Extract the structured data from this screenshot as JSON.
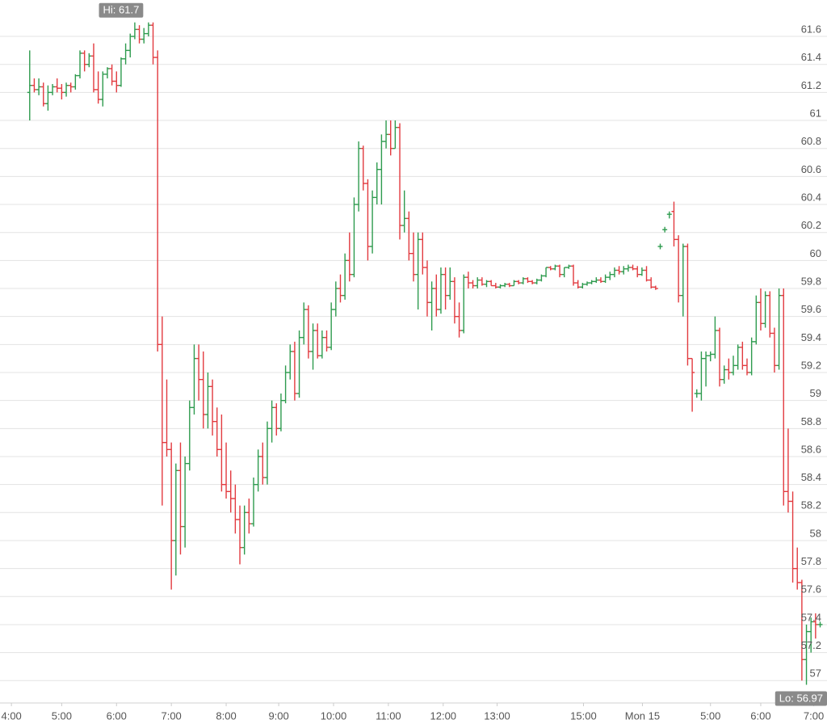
{
  "chart_data": {
    "type": "ohlc",
    "up_color": "#2e9b4e",
    "down_color": "#e23a3f",
    "grid": true,
    "xlim": [
      -6.5,
      174.5
    ],
    "ylim": [
      56.84,
      61.86
    ],
    "xticks": [
      {
        "value": -4,
        "label": "4:00"
      },
      {
        "value": 7,
        "label": "5:00"
      },
      {
        "value": 19,
        "label": "6:00"
      },
      {
        "value": 31,
        "label": "7:00"
      },
      {
        "value": 43,
        "label": "8:00"
      },
      {
        "value": 54.5,
        "label": "9:00"
      },
      {
        "value": 66.5,
        "label": "10:00"
      },
      {
        "value": 78.5,
        "label": "11:00"
      },
      {
        "value": 90.5,
        "label": "12:00"
      },
      {
        "value": 102.3,
        "label": "13:00"
      },
      {
        "value": 121.2,
        "label": "15:00"
      },
      {
        "value": 134.1,
        "label": "Mon 15"
      },
      {
        "value": 149,
        "label": "5:00"
      },
      {
        "value": 160,
        "label": "6:00"
      },
      {
        "value": 171.6,
        "label": "7:00"
      }
    ],
    "yticks": [
      57,
      57.2,
      57.4,
      57.6,
      57.8,
      58,
      58.2,
      58.4,
      58.6,
      58.8,
      59,
      59.2,
      59.4,
      59.6,
      59.8,
      60,
      60.2,
      60.4,
      60.6,
      60.8,
      61,
      61.2,
      61.4,
      61.6
    ],
    "annotations": [
      {
        "label": "Hi: 61.7",
        "value": 61.7,
        "x": 20
      },
      {
        "label": "Lo: 56.97",
        "value": 56.97,
        "x": 170
      }
    ],
    "ohlc": [
      [
        61.2,
        61.5,
        61.0,
        61.25
      ],
      [
        61.25,
        61.3,
        61.2,
        61.22
      ],
      [
        61.22,
        61.3,
        61.18,
        61.24
      ],
      [
        61.24,
        61.27,
        61.1,
        61.12
      ],
      [
        61.12,
        61.25,
        61.07,
        61.2
      ],
      [
        61.2,
        61.26,
        61.18,
        61.24
      ],
      [
        61.24,
        61.3,
        61.2,
        61.23
      ],
      [
        61.23,
        61.26,
        61.15,
        61.2
      ],
      [
        61.2,
        61.27,
        61.17,
        61.25
      ],
      [
        61.25,
        61.27,
        61.2,
        61.24
      ],
      [
        61.24,
        61.33,
        61.22,
        61.32
      ],
      [
        61.32,
        61.5,
        61.3,
        61.48
      ],
      [
        61.48,
        61.5,
        61.35,
        61.4
      ],
      [
        61.4,
        61.48,
        61.38,
        61.46
      ],
      [
        61.46,
        61.55,
        61.2,
        61.22
      ],
      [
        61.22,
        61.35,
        61.12,
        61.15
      ],
      [
        61.15,
        61.35,
        61.1,
        61.33
      ],
      [
        61.33,
        61.38,
        61.3,
        61.37
      ],
      [
        61.37,
        61.4,
        61.25,
        61.28
      ],
      [
        61.28,
        61.35,
        61.2,
        61.25
      ],
      [
        61.25,
        61.45,
        61.24,
        61.44
      ],
      [
        61.44,
        61.55,
        61.4,
        61.5
      ],
      [
        61.5,
        61.62,
        61.45,
        61.6
      ],
      [
        61.6,
        61.7,
        61.58,
        61.65
      ],
      [
        61.65,
        61.68,
        61.55,
        61.58
      ],
      [
        61.58,
        61.66,
        61.55,
        61.62
      ],
      [
        61.62,
        61.7,
        61.6,
        61.68
      ],
      [
        61.68,
        61.7,
        61.4,
        61.45
      ],
      [
        61.45,
        61.5,
        59.35,
        59.4
      ],
      [
        59.4,
        59.6,
        58.25,
        58.7
      ],
      [
        58.7,
        59.15,
        58.6,
        58.65
      ],
      [
        58.65,
        58.7,
        57.65,
        58.0
      ],
      [
        58.0,
        58.55,
        57.75,
        58.5
      ],
      [
        58.5,
        58.7,
        57.9,
        58.1
      ],
      [
        58.1,
        58.6,
        57.95,
        58.55
      ],
      [
        58.55,
        59.0,
        58.5,
        58.95
      ],
      [
        58.95,
        59.4,
        58.9,
        59.3
      ],
      [
        59.3,
        59.4,
        59.0,
        59.15
      ],
      [
        59.15,
        59.35,
        58.8,
        58.9
      ],
      [
        58.9,
        59.2,
        58.8,
        59.1
      ],
      [
        59.1,
        59.15,
        58.75,
        58.85
      ],
      [
        58.85,
        58.95,
        58.6,
        58.65
      ],
      [
        58.65,
        58.9,
        58.35,
        58.4
      ],
      [
        58.4,
        58.7,
        58.3,
        58.35
      ],
      [
        58.35,
        58.5,
        58.2,
        58.3
      ],
      [
        58.3,
        58.4,
        58.05,
        58.15
      ],
      [
        58.15,
        58.25,
        57.83,
        57.95
      ],
      [
        57.95,
        58.25,
        57.9,
        58.2
      ],
      [
        58.2,
        58.3,
        58.05,
        58.12
      ],
      [
        58.12,
        58.45,
        58.1,
        58.4
      ],
      [
        58.4,
        58.65,
        58.35,
        58.6
      ],
      [
        58.6,
        58.7,
        58.4,
        58.45
      ],
      [
        58.45,
        58.85,
        58.4,
        58.8
      ],
      [
        58.8,
        59.0,
        58.7,
        58.95
      ],
      [
        58.95,
        58.98,
        58.75,
        58.8
      ],
      [
        58.8,
        59.05,
        58.78,
        59.0
      ],
      [
        59.0,
        59.25,
        58.98,
        59.2
      ],
      [
        59.2,
        59.4,
        59.15,
        59.35
      ],
      [
        59.35,
        59.42,
        59.0,
        59.05
      ],
      [
        59.05,
        59.5,
        59.02,
        59.45
      ],
      [
        59.45,
        59.7,
        59.4,
        59.65
      ],
      [
        59.65,
        59.68,
        59.3,
        59.35
      ],
      [
        59.35,
        59.55,
        59.22,
        59.5
      ],
      [
        59.5,
        59.55,
        59.3,
        59.32
      ],
      [
        59.32,
        59.5,
        59.3,
        59.45
      ],
      [
        59.45,
        59.5,
        59.35,
        59.38
      ],
      [
        59.38,
        59.7,
        59.36,
        59.65
      ],
      [
        59.65,
        59.85,
        59.6,
        59.8
      ],
      [
        59.8,
        59.9,
        59.7,
        59.75
      ],
      [
        59.75,
        60.05,
        59.72,
        60.0
      ],
      [
        60.0,
        60.2,
        59.85,
        59.9
      ],
      [
        59.9,
        60.45,
        59.88,
        60.4
      ],
      [
        60.4,
        60.85,
        60.35,
        60.8
      ],
      [
        60.8,
        60.82,
        60.5,
        60.55
      ],
      [
        60.55,
        60.58,
        60.0,
        60.1
      ],
      [
        60.1,
        60.5,
        60.05,
        60.45
      ],
      [
        60.45,
        60.7,
        60.4,
        60.65
      ],
      [
        60.65,
        60.9,
        60.4,
        60.85
      ],
      [
        60.85,
        61.0,
        60.8,
        60.9
      ],
      [
        60.9,
        61.0,
        60.75,
        60.8
      ],
      [
        60.8,
        61.0,
        60.8,
        60.95
      ],
      [
        60.95,
        60.98,
        60.15,
        60.25
      ],
      [
        60.25,
        60.5,
        60.2,
        60.3
      ],
      [
        60.3,
        60.35,
        60.0,
        60.05
      ],
      [
        60.05,
        60.2,
        59.85,
        59.9
      ],
      [
        59.9,
        60.2,
        59.65,
        60.15
      ],
      [
        60.15,
        60.2,
        59.9,
        59.95
      ],
      [
        59.95,
        60.0,
        59.6,
        59.7
      ],
      [
        59.7,
        59.85,
        59.5,
        59.8
      ],
      [
        59.8,
        59.9,
        59.6,
        59.65
      ],
      [
        59.65,
        59.95,
        59.62,
        59.9
      ],
      [
        59.9,
        59.95,
        59.65,
        59.75
      ],
      [
        59.75,
        59.95,
        59.72,
        59.85
      ],
      [
        59.85,
        59.88,
        59.55,
        59.6
      ],
      [
        59.6,
        59.7,
        59.45,
        59.5
      ],
      [
        59.5,
        59.9,
        59.48,
        59.88
      ],
      [
        59.88,
        59.92,
        59.8,
        59.84
      ],
      [
        59.84,
        59.86,
        59.8,
        59.82
      ],
      [
        59.82,
        59.88,
        59.8,
        59.86
      ],
      [
        59.86,
        59.88,
        59.82,
        59.83
      ],
      [
        59.83,
        59.86,
        59.81,
        59.85
      ],
      [
        59.85,
        59.86,
        59.82,
        59.82
      ],
      [
        59.82,
        59.84,
        59.8,
        59.81
      ],
      [
        59.81,
        59.83,
        59.8,
        59.82
      ],
      [
        59.82,
        59.84,
        59.81,
        59.83
      ],
      [
        59.83,
        59.84,
        59.81,
        59.82
      ],
      [
        59.82,
        59.86,
        59.82,
        59.85
      ],
      [
        59.85,
        59.86,
        59.83,
        59.84
      ],
      [
        59.84,
        59.88,
        59.83,
        59.87
      ],
      [
        59.87,
        59.88,
        59.84,
        59.85
      ],
      [
        59.85,
        59.86,
        59.83,
        59.84
      ],
      [
        59.84,
        59.87,
        59.83,
        59.86
      ],
      [
        59.86,
        59.9,
        59.85,
        59.89
      ],
      [
        59.89,
        59.95,
        59.88,
        59.95
      ],
      [
        59.95,
        59.96,
        59.93,
        59.94
      ],
      [
        59.94,
        59.97,
        59.93,
        59.96
      ],
      [
        59.96,
        59.97,
        59.88,
        59.9
      ],
      [
        59.9,
        59.95,
        59.88,
        59.95
      ],
      [
        59.95,
        59.97,
        59.94,
        59.96
      ],
      [
        59.96,
        59.97,
        59.82,
        59.84
      ],
      [
        59.84,
        59.86,
        59.8,
        59.81
      ],
      [
        59.81,
        59.84,
        59.8,
        59.83
      ],
      [
        59.83,
        59.85,
        59.82,
        59.84
      ],
      [
        59.84,
        59.86,
        59.83,
        59.85
      ],
      [
        59.85,
        59.88,
        59.84,
        59.86
      ],
      [
        59.86,
        59.88,
        59.84,
        59.85
      ],
      [
        59.85,
        59.9,
        59.84,
        59.88
      ],
      [
        59.88,
        59.92,
        59.86,
        59.9
      ],
      [
        59.9,
        59.95,
        59.88,
        59.93
      ],
      [
        59.93,
        59.96,
        59.9,
        59.92
      ],
      [
        59.92,
        59.96,
        59.9,
        59.94
      ],
      [
        59.94,
        59.97,
        59.92,
        59.95
      ],
      [
        59.95,
        59.97,
        59.93,
        59.94
      ],
      [
        59.94,
        59.96,
        59.88,
        59.9
      ],
      [
        59.9,
        59.95,
        59.89,
        59.93
      ],
      [
        59.93,
        59.96,
        59.85,
        59.86
      ],
      [
        59.86,
        59.88,
        59.8,
        59.81
      ],
      [
        59.81,
        59.82,
        59.79,
        59.8
      ],
      [
        60.1,
        60.12,
        60.08,
        60.1
      ],
      [
        60.22,
        60.24,
        60.2,
        60.22
      ],
      [
        60.33,
        60.35,
        60.3,
        60.33
      ],
      [
        60.35,
        60.42,
        60.1,
        60.15
      ],
      [
        60.15,
        60.18,
        59.7,
        59.75
      ],
      [
        59.75,
        60.12,
        59.6,
        60.1
      ],
      [
        60.1,
        60.12,
        59.25,
        59.3
      ],
      [
        59.3,
        59.3,
        58.92,
        59.2
      ],
      [
        59.05,
        59.08,
        59.02,
        59.05
      ],
      [
        59.05,
        59.35,
        59.0,
        59.3
      ],
      [
        59.3,
        59.35,
        59.1,
        59.32
      ],
      [
        59.32,
        59.35,
        59.28,
        59.33
      ],
      [
        59.33,
        59.6,
        59.3,
        59.5
      ],
      [
        59.5,
        59.52,
        59.1,
        59.15
      ],
      [
        59.15,
        59.25,
        59.12,
        59.22
      ],
      [
        59.22,
        59.3,
        59.15,
        59.2
      ],
      [
        59.2,
        59.32,
        59.18,
        59.25
      ],
      [
        59.25,
        59.4,
        59.22,
        59.38
      ],
      [
        59.38,
        59.42,
        59.22,
        59.25
      ],
      [
        59.25,
        59.3,
        59.18,
        59.2
      ],
      [
        59.2,
        59.45,
        59.18,
        59.42
      ],
      [
        59.42,
        59.75,
        59.4,
        59.7
      ],
      [
        59.7,
        59.8,
        59.5,
        59.55
      ],
      [
        59.55,
        59.78,
        59.52,
        59.75
      ],
      [
        59.75,
        59.78,
        59.45,
        59.48
      ],
      [
        59.48,
        59.52,
        59.2,
        59.25
      ],
      [
        59.25,
        59.8,
        59.22,
        59.75
      ],
      [
        59.75,
        59.8,
        58.25,
        58.35
      ],
      [
        58.35,
        58.8,
        58.2,
        58.28
      ],
      [
        58.28,
        58.35,
        57.7,
        57.8
      ],
      [
        57.8,
        57.95,
        57.65,
        57.7
      ],
      [
        57.7,
        57.72,
        57.0,
        57.15
      ],
      [
        57.15,
        57.4,
        56.97,
        57.35
      ],
      [
        57.35,
        57.45,
        57.2,
        57.42
      ],
      [
        57.42,
        57.48,
        57.3,
        57.4
      ],
      [
        57.4,
        57.42,
        57.38,
        57.4
      ]
    ]
  }
}
